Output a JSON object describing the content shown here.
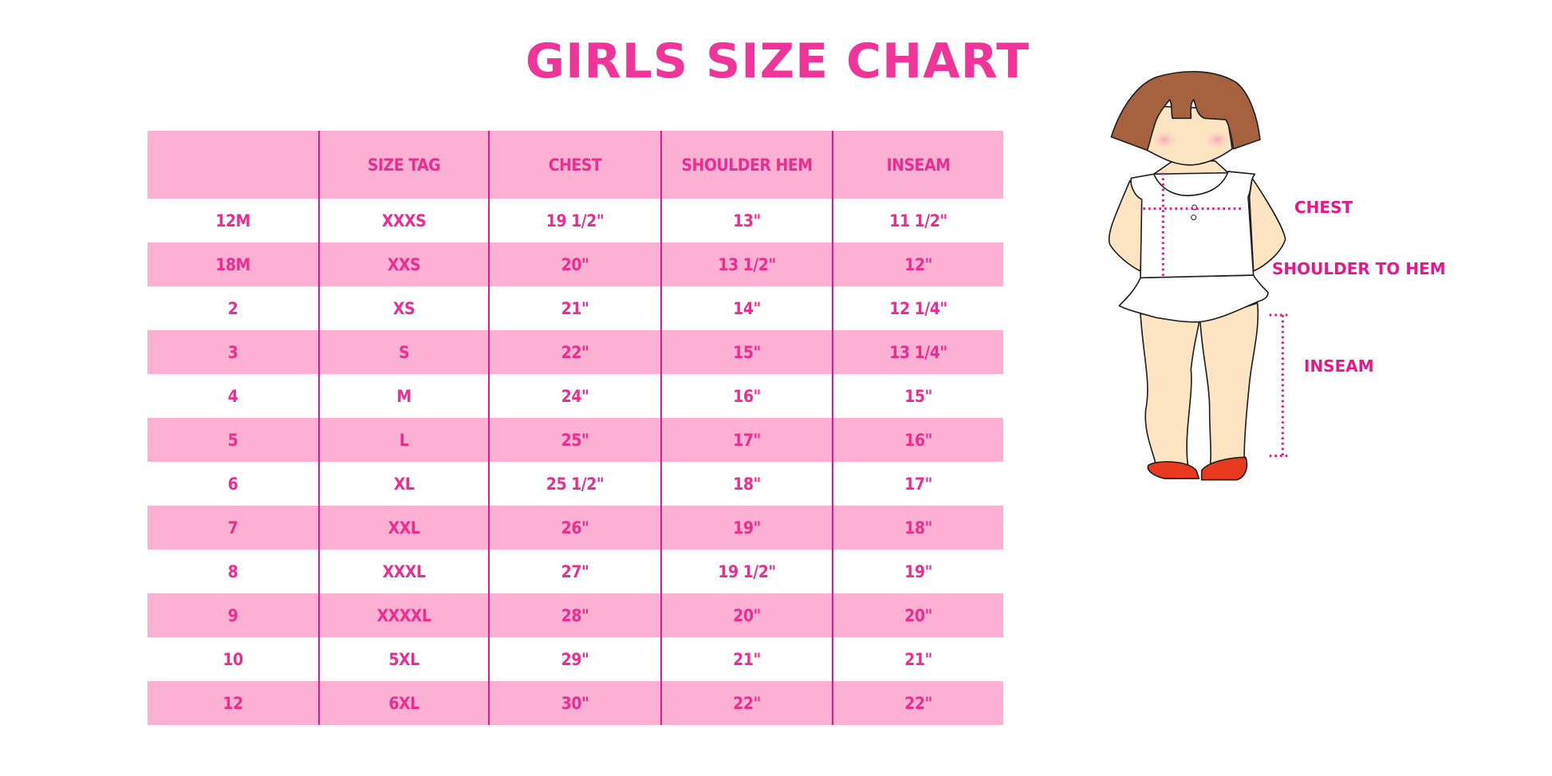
{
  "title": "GIRLS SIZE CHART",
  "table": {
    "headers": [
      "",
      "SIZE TAG",
      "CHEST",
      "SHOULDER HEM",
      "INSEAM"
    ],
    "rows": [
      [
        "12M",
        "XXXS",
        "19 1/2\"",
        "13\"",
        "11 1/2\""
      ],
      [
        "18M",
        "XXS",
        "20\"",
        "13 1/2\"",
        "12\""
      ],
      [
        "2",
        "XS",
        "21\"",
        "14\"",
        "12 1/4\""
      ],
      [
        "3",
        "S",
        "22\"",
        "15\"",
        "13 1/4\""
      ],
      [
        "4",
        "M",
        "24\"",
        "16\"",
        "15\""
      ],
      [
        "5",
        "L",
        "25\"",
        "17\"",
        "16\""
      ],
      [
        "6",
        "XL",
        "25 1/2\"",
        "18\"",
        "17\""
      ],
      [
        "7",
        "XXL",
        "26\"",
        "19\"",
        "18\""
      ],
      [
        "8",
        "XXXL",
        "27\"",
        "19 1/2\"",
        "19\""
      ],
      [
        "9",
        "XXXXL",
        "28\"",
        "20\"",
        "20\""
      ],
      [
        "10",
        "5XL",
        "29\"",
        "21\"",
        "21\""
      ],
      [
        "12",
        "6XL",
        "30\"",
        "22\"",
        "22\""
      ]
    ]
  },
  "figure": {
    "labels": {
      "chest": "CHEST",
      "shoulder": "SHOULDER TO HEM",
      "inseam": "INSEAM"
    }
  },
  "colors": {
    "accent": "#f0359a",
    "row_pink": "#fcb1d4",
    "divider": "#e5178a"
  }
}
